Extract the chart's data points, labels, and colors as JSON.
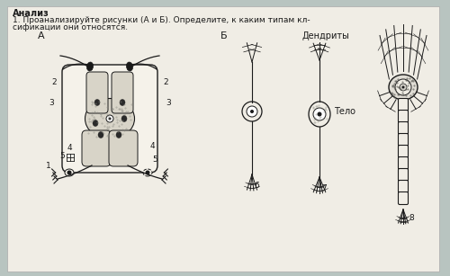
{
  "bg_color": "#b8c4c0",
  "page_bg": "#f0ede5",
  "title_line1": "Анализ",
  "title_line2": "1. Проанализируйте рисунки (А и Б). Определите, к каким типам кл-",
  "title_line3": "сификации они относятся.",
  "label_A": "А",
  "label_B": "Б",
  "label_dendrity": "Дендриты",
  "label_telo": "Тело",
  "ink_color": "#1a1a1a",
  "fig_width": 5.0,
  "fig_height": 3.07
}
